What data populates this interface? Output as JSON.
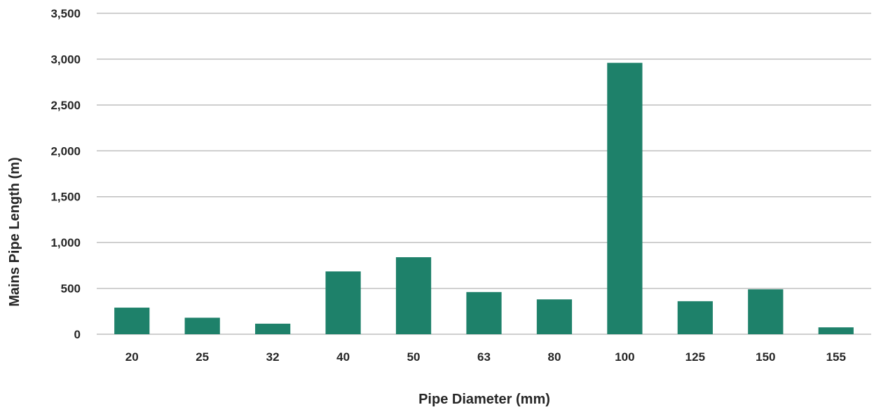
{
  "chart_data": {
    "type": "bar",
    "title": "",
    "xlabel": "Pipe Diameter (mm)",
    "ylabel": "Mains Pipe Length (m)",
    "categories": [
      "20",
      "25",
      "32",
      "40",
      "50",
      "63",
      "80",
      "100",
      "125",
      "150",
      "155"
    ],
    "series": [
      {
        "values": [
          290,
          180,
          115,
          685,
          840,
          460,
          380,
          2960,
          360,
          490,
          75
        ]
      }
    ],
    "ylim": [
      0,
      3500
    ],
    "yticks": [
      0,
      500,
      1000,
      1500,
      2000,
      2500,
      3000,
      3500
    ],
    "ytick_labels": [
      "0",
      "500",
      "1,000",
      "1,500",
      "2,000",
      "2,500",
      "3,000",
      "3,500"
    ],
    "grid": true,
    "legend": "none",
    "colors": {
      "bar": "#1e816a",
      "grid": "#bfbfbf",
      "text": "#262626"
    }
  }
}
